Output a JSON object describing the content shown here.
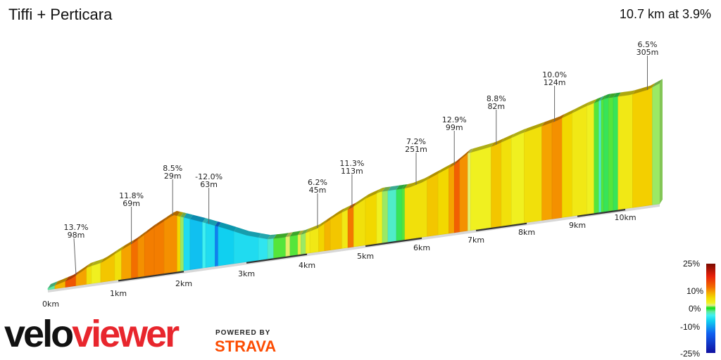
{
  "header": {
    "title": "Tiffi + Perticara",
    "summary": "10.7 km at 3.9%"
  },
  "chart_data": {
    "type": "area",
    "title": "Tiffi + Perticara",
    "xlabel": "",
    "ylabel": "",
    "x_ticks": [
      "0km",
      "1km",
      "2km",
      "3km",
      "4km",
      "5km",
      "6km",
      "7km",
      "8km",
      "9km",
      "10km"
    ],
    "total_distance_km": 10.7,
    "average_grade_pct": 3.9,
    "profile_km_elev_m": [
      [
        0,
        5
      ],
      [
        0.32,
        26
      ],
      [
        0.57,
        60
      ],
      [
        0.77,
        70
      ],
      [
        1.02,
        102
      ],
      [
        1.24,
        125
      ],
      [
        1.51,
        163
      ],
      [
        1.84,
        203
      ],
      [
        1.99,
        190
      ],
      [
        2.33,
        160
      ],
      [
        2.66,
        129
      ],
      [
        3.0,
        94
      ],
      [
        3.35,
        70
      ],
      [
        3.58,
        68
      ],
      [
        3.92,
        70
      ],
      [
        4.17,
        83
      ],
      [
        4.53,
        123
      ],
      [
        4.78,
        141
      ],
      [
        5.01,
        166
      ],
      [
        5.26,
        182
      ],
      [
        5.76,
        182
      ],
      [
        6.01,
        195
      ],
      [
        6.59,
        240
      ],
      [
        6.85,
        275
      ],
      [
        7.33,
        288
      ],
      [
        7.89,
        319
      ],
      [
        8.58,
        346
      ],
      [
        9.15,
        382
      ],
      [
        9.59,
        402
      ],
      [
        10.1,
        402
      ],
      [
        10.45,
        411
      ],
      [
        10.7,
        429
      ]
    ],
    "segments_km_grade": [
      [
        0,
        0.1,
        -2
      ],
      [
        0.1,
        0.25,
        8
      ],
      [
        0.25,
        0.4,
        13.7
      ],
      [
        0.4,
        0.55,
        9
      ],
      [
        0.55,
        0.62,
        5
      ],
      [
        0.62,
        0.75,
        3
      ],
      [
        0.75,
        0.95,
        7
      ],
      [
        0.95,
        1.05,
        5
      ],
      [
        1.05,
        1.2,
        9
      ],
      [
        1.2,
        1.3,
        11.8
      ],
      [
        1.3,
        1.4,
        10
      ],
      [
        1.4,
        1.55,
        11
      ],
      [
        1.55,
        1.7,
        11
      ],
      [
        1.7,
        1.9,
        10
      ],
      [
        1.9,
        1.95,
        6
      ],
      [
        1.95,
        2.0,
        1
      ],
      [
        2.0,
        2.1,
        -6
      ],
      [
        2.1,
        2.3,
        -8
      ],
      [
        2.3,
        2.35,
        -4
      ],
      [
        2.35,
        2.5,
        -6
      ],
      [
        2.5,
        2.55,
        -12
      ],
      [
        2.55,
        2.8,
        -7
      ],
      [
        2.8,
        3.2,
        -6
      ],
      [
        3.2,
        3.35,
        -5
      ],
      [
        3.35,
        3.45,
        -3
      ],
      [
        3.45,
        3.65,
        0.5
      ],
      [
        3.65,
        3.72,
        2
      ],
      [
        3.72,
        3.85,
        0.5
      ],
      [
        3.85,
        3.9,
        2.5
      ],
      [
        3.9,
        3.98,
        1
      ],
      [
        3.98,
        4.05,
        3
      ],
      [
        4.05,
        4.2,
        4
      ],
      [
        4.2,
        4.3,
        6.2
      ],
      [
        4.3,
        4.4,
        8
      ],
      [
        4.4,
        4.6,
        7
      ],
      [
        4.6,
        4.7,
        4
      ],
      [
        4.7,
        4.8,
        11.3
      ],
      [
        4.8,
        5.0,
        5
      ],
      [
        5.0,
        5.2,
        6
      ],
      [
        5.2,
        5.3,
        3
      ],
      [
        5.3,
        5.4,
        1
      ],
      [
        5.4,
        5.55,
        -3
      ],
      [
        5.55,
        5.65,
        -1
      ],
      [
        5.65,
        5.7,
        0.5
      ],
      [
        5.7,
        6.1,
        5
      ],
      [
        6.1,
        6.3,
        7
      ],
      [
        6.3,
        6.5,
        6
      ],
      [
        6.5,
        6.6,
        9
      ],
      [
        6.6,
        6.7,
        12.9
      ],
      [
        6.7,
        6.85,
        10
      ],
      [
        6.85,
        6.9,
        2
      ],
      [
        6.9,
        7.3,
        3
      ],
      [
        7.3,
        7.5,
        7
      ],
      [
        7.5,
        7.7,
        5
      ],
      [
        7.7,
        7.95,
        3
      ],
      [
        7.95,
        8.3,
        5
      ],
      [
        8.3,
        8.5,
        9
      ],
      [
        8.5,
        8.7,
        10
      ],
      [
        8.7,
        8.9,
        6
      ],
      [
        8.9,
        9.2,
        4
      ],
      [
        9.2,
        9.35,
        3
      ],
      [
        9.35,
        9.45,
        0.5
      ],
      [
        9.45,
        9.5,
        -3
      ],
      [
        9.5,
        9.55,
        0.5
      ],
      [
        9.55,
        9.65,
        -1
      ],
      [
        9.65,
        9.75,
        0.5
      ],
      [
        9.75,
        9.85,
        -1
      ],
      [
        9.85,
        10.15,
        4
      ],
      [
        10.15,
        10.55,
        6.5
      ],
      [
        10.55,
        10.7,
        1
      ]
    ],
    "annotations": [
      {
        "km": 0.4,
        "grade": "13.7%",
        "length": "98m"
      },
      {
        "km": 1.2,
        "grade": "11.8%",
        "length": "69m"
      },
      {
        "km": 1.83,
        "grade": "8.5%",
        "length": "29m"
      },
      {
        "km": 2.4,
        "grade": "-12.0%",
        "length": "63m"
      },
      {
        "km": 4.18,
        "grade": "6.2%",
        "length": "45m"
      },
      {
        "km": 4.77,
        "grade": "11.3%",
        "length": "113m"
      },
      {
        "km": 5.9,
        "grade": "7.2%",
        "length": "251m"
      },
      {
        "km": 6.6,
        "grade": "12.9%",
        "length": "99m"
      },
      {
        "km": 7.4,
        "grade": "8.8%",
        "length": "82m"
      },
      {
        "km": 8.55,
        "grade": "10.0%",
        "length": "124m"
      },
      {
        "km": 10.45,
        "grade": "6.5%",
        "length": "305m"
      }
    ],
    "legend": {
      "labels": [
        "25%",
        "10%",
        "0%",
        "-10%",
        "-25%"
      ],
      "stops": [
        [
          25,
          "#7a0a00"
        ],
        [
          18,
          "#e8200a"
        ],
        [
          12,
          "#f26a00"
        ],
        [
          9,
          "#f5a300"
        ],
        [
          6,
          "#f2d800"
        ],
        [
          3,
          "#f0f020"
        ],
        [
          1.5,
          "#e0ee90"
        ],
        [
          0,
          "#10e010"
        ],
        [
          -2,
          "#60e8a0"
        ],
        [
          -4,
          "#40f0f0"
        ],
        [
          -7,
          "#10d0f0"
        ],
        [
          -10,
          "#10a0f0"
        ],
        [
          -14,
          "#1060f0"
        ],
        [
          -25,
          "#1010a0"
        ]
      ]
    }
  },
  "branding": {
    "logo_left": "velo",
    "logo_right": "viewer",
    "powered_by": "POWERED BY",
    "strava": "STRAVA"
  }
}
